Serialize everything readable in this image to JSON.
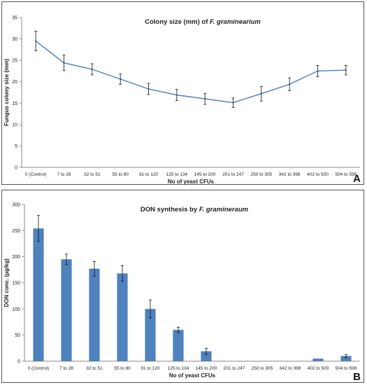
{
  "chart_data": [
    {
      "type": "line",
      "panel_label": "A",
      "title": "Colony size (mm) of F. graminearium",
      "title_plain": "Colony size (mm) of ",
      "title_italic": "F. graminearium",
      "xlabel": "No of yeast CFUs",
      "ylabel": "Fungus colony size (mm)",
      "categories": [
        "0 (Control)",
        "7 to 28",
        "32 to 51",
        "55 to 80",
        "91 to 120",
        "125 to 134",
        "145 to 200",
        "201 to 247",
        "250 to 305",
        "342 to 398",
        "402 to 500",
        "504 to 598"
      ],
      "values": [
        29.5,
        24.4,
        22.9,
        20.6,
        18.3,
        16.9,
        16.0,
        15.1,
        17.2,
        19.4,
        22.5,
        22.7
      ],
      "errors": [
        2.3,
        1.8,
        1.3,
        1.2,
        1.3,
        1.3,
        1.3,
        1.1,
        1.7,
        1.5,
        1.3,
        1.1
      ],
      "ylim": [
        0,
        35
      ],
      "yticks": [
        0,
        5,
        10,
        15,
        20,
        25,
        30,
        35
      ],
      "grid": false,
      "line_color": "#4a7ebb"
    },
    {
      "type": "bar",
      "panel_label": "B",
      "title": "DON synthesis by F. gramineraum",
      "title_plain": "DON synthesis by ",
      "title_italic": "F. gramineraum",
      "xlabel": "No of yeast CFUs",
      "ylabel": "DON conc. (µg/kg)",
      "categories": [
        "0 (Control)",
        "7 to 28",
        "32 to 51",
        "55 to 80",
        "91 to 120",
        "125 to 134",
        "145 to 200",
        "201 to 247",
        "250 to 305",
        "342 to 398",
        "402 to 500",
        "504 to 598"
      ],
      "values": [
        254,
        195,
        177,
        168,
        100,
        60,
        19,
        0,
        0,
        0,
        5,
        10
      ],
      "errors": [
        25,
        10,
        14,
        15,
        17,
        5,
        6,
        0,
        0,
        0,
        0,
        3
      ],
      "ylim": [
        0,
        300
      ],
      "yticks": [
        0,
        50,
        100,
        150,
        200,
        250,
        300
      ],
      "grid": false,
      "bar_color": "#4f81bd"
    }
  ]
}
